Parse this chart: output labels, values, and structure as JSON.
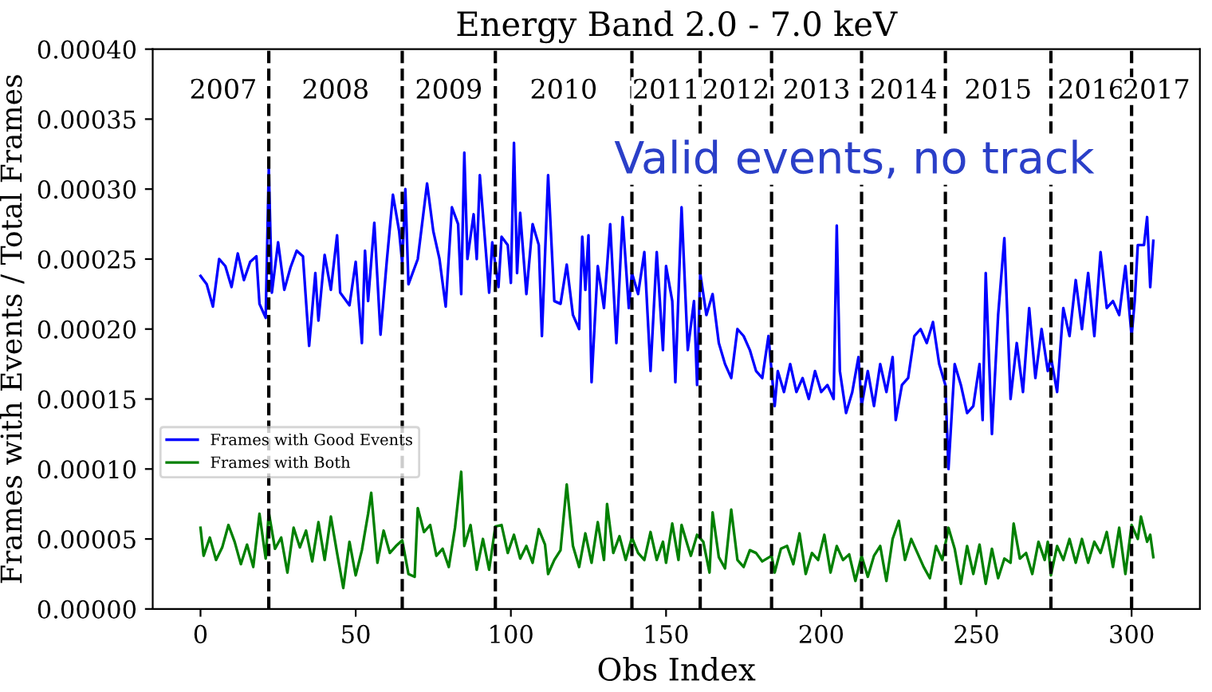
{
  "chart_data": {
    "type": "line",
    "title": "Energy Band 2.0 - 7.0 keV",
    "xlabel": "Obs Index",
    "ylabel": "Frames with Events / Total Frames",
    "xlim": [
      -15.4,
      322
    ],
    "xticks": [
      0,
      50,
      100,
      150,
      200,
      250,
      300
    ],
    "ylim": [
      0,
      0.0004
    ],
    "yticks": [
      {
        "value": 0,
        "label": "0.00000"
      },
      {
        "value": 5e-05,
        "label": "0.00005"
      },
      {
        "value": 0.0001,
        "label": "0.00010"
      },
      {
        "value": 0.00015,
        "label": "0.00015"
      },
      {
        "value": 0.0002,
        "label": "0.00020"
      },
      {
        "value": 0.00025,
        "label": "0.00025"
      },
      {
        "value": 0.0003,
        "label": "0.00030"
      },
      {
        "value": 0.00035,
        "label": "0.00035"
      },
      {
        "value": 0.0004,
        "label": "0.00040"
      }
    ],
    "grid": false,
    "legend": "left",
    "marker": "none",
    "line_style": "solid",
    "series": [
      {
        "name": "Frames with Good Events",
        "color": "#0000ff",
        "x": [
          0,
          2,
          4,
          6,
          8,
          10,
          12,
          14,
          16,
          18,
          19,
          21,
          22,
          23,
          25,
          27,
          29,
          31,
          33,
          35,
          37,
          38,
          40,
          42,
          44,
          45,
          48,
          50,
          52,
          53,
          54,
          56,
          58,
          60,
          62,
          64,
          65,
          66,
          67,
          70,
          73,
          75,
          77,
          79,
          81,
          83,
          84,
          85,
          86,
          88,
          89,
          90,
          93,
          94,
          96,
          97,
          99,
          100,
          101,
          102,
          103,
          105,
          107,
          109,
          110,
          112,
          114,
          116,
          118,
          120,
          122,
          123,
          124,
          125,
          126,
          128,
          130,
          132,
          134,
          136,
          138,
          139,
          141,
          143,
          145,
          147,
          149,
          150,
          152,
          153,
          155,
          157,
          159,
          160,
          161,
          163,
          165,
          167,
          169,
          171,
          173,
          175,
          177,
          179,
          181,
          183,
          185,
          186,
          188,
          190,
          192,
          194,
          196,
          198,
          200,
          202,
          204,
          205,
          206,
          208,
          210,
          212,
          213,
          215,
          217,
          219,
          221,
          223,
          224,
          226,
          228,
          230,
          232,
          234,
          236,
          238,
          240,
          241,
          243,
          245,
          247,
          249,
          251,
          252,
          253,
          255,
          257,
          259,
          261,
          263,
          265,
          267,
          269,
          271,
          273,
          274,
          276,
          278,
          280,
          282,
          284,
          286,
          288,
          290,
          292,
          294,
          296,
          298,
          300,
          301,
          302,
          304,
          305,
          306,
          307
        ],
        "values": [
          0.000238,
          0.000232,
          0.000216,
          0.00025,
          0.000245,
          0.00023,
          0.000254,
          0.000235,
          0.000248,
          0.000252,
          0.000218,
          0.000208,
          0.000315,
          0.000226,
          0.000262,
          0.000228,
          0.000244,
          0.000256,
          0.000252,
          0.000188,
          0.00024,
          0.000206,
          0.000253,
          0.000228,
          0.000267,
          0.000226,
          0.000217,
          0.000248,
          0.00019,
          0.000256,
          0.00022,
          0.000276,
          0.000196,
          0.000248,
          0.000296,
          0.00027,
          0.000247,
          0.0003,
          0.000232,
          0.00025,
          0.000304,
          0.00027,
          0.00025,
          0.000216,
          0.000287,
          0.000275,
          0.000225,
          0.000326,
          0.00025,
          0.000282,
          0.00025,
          0.00031,
          0.000226,
          0.000262,
          0.00023,
          0.000266,
          0.00026,
          0.000233,
          0.000333,
          0.00024,
          0.000283,
          0.000225,
          0.000275,
          0.00026,
          0.000195,
          0.00031,
          0.00022,
          0.000218,
          0.000246,
          0.00021,
          0.0002,
          0.000266,
          0.000228,
          0.000267,
          0.000162,
          0.000245,
          0.000215,
          0.000275,
          0.00019,
          0.00028,
          0.000215,
          0.00024,
          0.000225,
          0.000255,
          0.00017,
          0.000255,
          0.000185,
          0.000245,
          0.00022,
          0.000162,
          0.000287,
          0.000185,
          0.00022,
          0.00016,
          0.00024,
          0.00021,
          0.000225,
          0.00019,
          0.000175,
          0.000165,
          0.0002,
          0.000195,
          0.000185,
          0.00017,
          0.000165,
          0.000195,
          0.000145,
          0.00017,
          0.000155,
          0.000175,
          0.000155,
          0.000165,
          0.00015,
          0.00017,
          0.000155,
          0.00016,
          0.00015,
          0.000274,
          0.00017,
          0.00014,
          0.000155,
          0.00018,
          0.000145,
          0.00017,
          0.000145,
          0.000175,
          0.000155,
          0.00018,
          0.000135,
          0.00016,
          0.000165,
          0.000195,
          0.0002,
          0.00019,
          0.000205,
          0.000175,
          0.00016,
          0.0001,
          0.000175,
          0.00016,
          0.00014,
          0.000145,
          0.000175,
          0.000135,
          0.00024,
          0.000125,
          0.00021,
          0.000265,
          0.00015,
          0.00019,
          0.000155,
          0.000215,
          0.000165,
          0.0002,
          0.00017,
          0.00018,
          0.000155,
          0.000215,
          0.000195,
          0.000235,
          0.0002,
          0.00024,
          0.000195,
          0.000255,
          0.000215,
          0.00022,
          0.00021,
          0.000245,
          0.000195,
          0.00022,
          0.00026,
          0.00026,
          0.00028,
          0.00023,
          0.000263
        ]
      },
      {
        "name": "Frames with Both",
        "color": "#008000",
        "x": [
          0,
          1,
          3,
          5,
          7,
          9,
          11,
          13,
          15,
          17,
          19,
          21,
          22,
          24,
          26,
          28,
          30,
          32,
          34,
          36,
          38,
          40,
          42,
          44,
          46,
          48,
          50,
          52,
          54,
          55,
          57,
          59,
          61,
          63,
          65,
          67,
          69,
          70,
          72,
          74,
          76,
          78,
          80,
          82,
          84,
          85,
          87,
          89,
          91,
          93,
          95,
          97,
          99,
          101,
          103,
          105,
          107,
          109,
          111,
          112,
          114,
          116,
          118,
          120,
          122,
          124,
          126,
          128,
          130,
          131,
          133,
          135,
          137,
          139,
          141,
          143,
          145,
          147,
          149,
          150,
          152,
          154,
          155,
          157,
          158,
          160,
          162,
          164,
          165,
          167,
          169,
          171,
          173,
          175,
          177,
          179,
          181,
          184,
          185,
          187,
          189,
          191,
          193,
          195,
          197,
          199,
          201,
          203,
          205,
          207,
          209,
          211,
          213,
          215,
          217,
          219,
          221,
          223,
          225,
          227,
          229,
          231,
          233,
          235,
          237,
          239,
          241,
          243,
          245,
          247,
          249,
          251,
          253,
          255,
          257,
          259,
          261,
          262,
          264,
          266,
          268,
          270,
          272,
          273,
          274,
          276,
          278,
          280,
          282,
          284,
          286,
          288,
          290,
          292,
          294,
          296,
          298,
          300,
          302,
          303,
          305,
          306,
          307
        ],
        "values": [
          5.8e-05,
          3.8e-05,
          5.1e-05,
          3.5e-05,
          4.4e-05,
          6e-05,
          4.8e-05,
          3.2e-05,
          4.6e-05,
          3e-05,
          6.8e-05,
          3.6e-05,
          6.9e-05,
          4.3e-05,
          5.1e-05,
          2.6e-05,
          5.8e-05,
          4.4e-05,
          5.6e-05,
          3.4e-05,
          6.2e-05,
          3.5e-05,
          6.6e-05,
          4e-05,
          1.5e-05,
          4.8e-05,
          2.4e-05,
          4.2e-05,
          6.8e-05,
          8.3e-05,
          3.3e-05,
          5.6e-05,
          4e-05,
          4.5e-05,
          4.9e-05,
          2.5e-05,
          2.3e-05,
          7.2e-05,
          5.5e-05,
          6e-05,
          3.8e-05,
          4.3e-05,
          3e-05,
          5.8e-05,
          9.8e-05,
          4.5e-05,
          6e-05,
          2.8e-05,
          5e-05,
          2.8e-05,
          5.9e-05,
          6e-05,
          4e-05,
          5.3e-05,
          3.6e-05,
          4.5e-05,
          3.3e-05,
          5.7e-05,
          4.6e-05,
          2.5e-05,
          3.5e-05,
          4.2e-05,
          8.9e-05,
          4.5e-05,
          3e-05,
          5.4e-05,
          3.3e-05,
          6.2e-05,
          3.5e-05,
          7.5e-05,
          4e-05,
          5.2e-05,
          3.5e-05,
          5.1e-05,
          4e-05,
          3.5e-05,
          5.5e-05,
          3.5e-05,
          4.8e-05,
          3.3e-05,
          6.1e-05,
          3.5e-05,
          6e-05,
          4.5e-05,
          3.8e-05,
          5.3e-05,
          4.8e-05,
          2.6e-05,
          6.9e-05,
          3.7e-05,
          2.9e-05,
          7.1e-05,
          3.5e-05,
          3e-05,
          4.2e-05,
          4e-05,
          3.4e-05,
          3.8e-05,
          2.6e-05,
          4.3e-05,
          4.5e-05,
          3.2e-05,
          5.4e-05,
          2.5e-05,
          4e-05,
          3.5e-05,
          5.3e-05,
          2.6e-05,
          4.5e-05,
          3.5e-05,
          3.9e-05,
          2e-05,
          3.8e-05,
          2.3e-05,
          3.8e-05,
          4.5e-05,
          2e-05,
          5e-05,
          6.3e-05,
          3.5e-05,
          5e-05,
          4e-05,
          3e-05,
          2.2e-05,
          4.5e-05,
          3.5e-05,
          5.8e-05,
          4.3e-05,
          1.8e-05,
          4.5e-05,
          2.5e-05,
          4.6e-05,
          1.8e-05,
          4.3e-05,
          2.2e-05,
          3.6e-05,
          3.3e-05,
          6.1e-05,
          3.6e-05,
          4e-05,
          2.5e-05,
          4.8e-05,
          3.5e-05,
          4.8e-05,
          2.4e-05,
          4.5e-05,
          3.5e-05,
          5e-05,
          3.3e-05,
          5e-05,
          3.3e-05,
          4.8e-05,
          4e-05,
          5.5e-05,
          3e-05,
          5.8e-05,
          2.5e-05,
          6e-05,
          5e-05,
          6.6e-05,
          4.8e-05,
          5.3e-05,
          3.7e-05
        ]
      }
    ],
    "ref_lines": [
      {
        "axis": "x",
        "value": 22,
        "color": "#000000",
        "line_style": "dashed"
      },
      {
        "axis": "x",
        "value": 65,
        "color": "#000000",
        "line_style": "dashed"
      },
      {
        "axis": "x",
        "value": 95,
        "color": "#000000",
        "line_style": "dashed"
      },
      {
        "axis": "x",
        "value": 139,
        "color": "#000000",
        "line_style": "dashed"
      },
      {
        "axis": "x",
        "value": 161,
        "color": "#000000",
        "line_style": "dashed"
      },
      {
        "axis": "x",
        "value": 184,
        "color": "#000000",
        "line_style": "dashed"
      },
      {
        "axis": "x",
        "value": 213,
        "color": "#000000",
        "line_style": "dashed"
      },
      {
        "axis": "x",
        "value": 240,
        "color": "#000000",
        "line_style": "dashed"
      },
      {
        "axis": "x",
        "value": 274,
        "color": "#000000",
        "line_style": "dashed"
      },
      {
        "axis": "x",
        "value": 300,
        "color": "#000000",
        "line_style": "dashed"
      }
    ],
    "annotations": [
      "2007",
      "2008",
      "2009",
      "2010",
      "2011",
      "2012",
      "2013",
      "2014",
      "2015",
      "2016",
      "2017",
      "Valid events, no track"
    ]
  }
}
